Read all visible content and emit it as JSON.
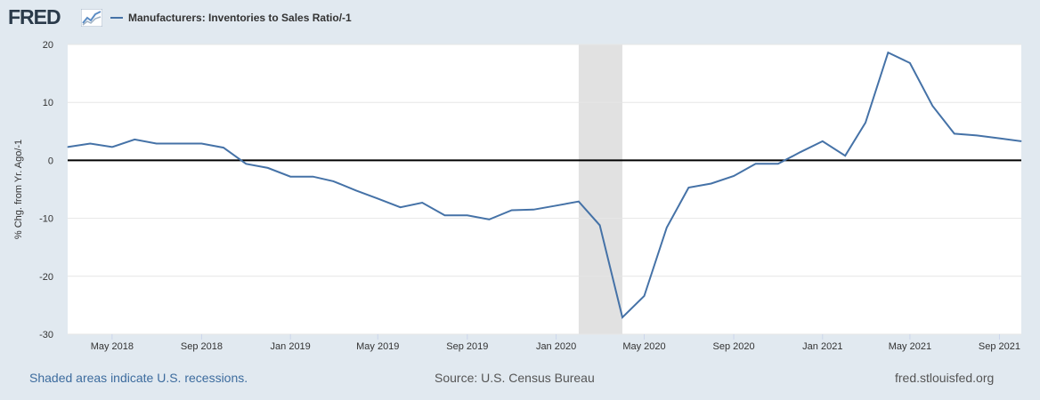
{
  "header": {
    "logo_text": "FRED",
    "logo_icon": "line-chart-icon",
    "legend_label": "Manufacturers: Inventories to Sales Ratio/-1"
  },
  "colors": {
    "series": "#4572a7",
    "recession": "#e1e1e1",
    "background": "#e1e9f0",
    "plot": "#ffffff"
  },
  "chart_data": {
    "type": "line",
    "ylabel": "% Chg. from Yr. Ago/-1",
    "ylim": [
      -30,
      20
    ],
    "y_ticks": [
      20,
      10,
      0,
      -10,
      -20,
      -30
    ],
    "x_ticks": [
      {
        "label": "May 2018",
        "date": "2018-05-01"
      },
      {
        "label": "Sep 2018",
        "date": "2018-09-01"
      },
      {
        "label": "Jan 2019",
        "date": "2019-01-01"
      },
      {
        "label": "May 2019",
        "date": "2019-05-01"
      },
      {
        "label": "Sep 2019",
        "date": "2019-09-01"
      },
      {
        "label": "Jan 2020",
        "date": "2020-01-01"
      },
      {
        "label": "May 2020",
        "date": "2020-05-01"
      },
      {
        "label": "Sep 2020",
        "date": "2020-09-01"
      },
      {
        "label": "Jan 2021",
        "date": "2021-01-01"
      },
      {
        "label": "May 2021",
        "date": "2021-05-01"
      },
      {
        "label": "Sep 2021",
        "date": "2021-09-01"
      }
    ],
    "recession": {
      "start": "2020-02-01",
      "end": "2020-04-01"
    },
    "series": [
      {
        "x": [
          "2018-03-01",
          "2018-04-01",
          "2018-05-01",
          "2018-06-01",
          "2018-07-01",
          "2018-08-01",
          "2018-09-01",
          "2018-10-01",
          "2018-11-01",
          "2018-12-01",
          "2019-01-01",
          "2019-02-01",
          "2019-03-01",
          "2019-04-01",
          "2019-05-01",
          "2019-06-01",
          "2019-07-01",
          "2019-08-01",
          "2019-09-01",
          "2019-10-01",
          "2019-11-01",
          "2019-12-01",
          "2020-01-01",
          "2020-02-01",
          "2020-03-01",
          "2020-04-01",
          "2020-05-01",
          "2020-06-01",
          "2020-07-01",
          "2020-08-01",
          "2020-09-01",
          "2020-10-01",
          "2020-11-01",
          "2020-12-01",
          "2021-01-01",
          "2021-02-01",
          "2021-03-01",
          "2021-04-01",
          "2021-05-01",
          "2021-06-01",
          "2021-07-01",
          "2021-08-01",
          "2021-09-01",
          "2021-10-01"
        ],
        "values": [
          2.3,
          2.9,
          2.3,
          3.6,
          2.9,
          2.9,
          2.9,
          2.2,
          -0.6,
          -1.3,
          -2.8,
          -2.8,
          -3.6,
          -5.2,
          -6.6,
          -8.1,
          -7.3,
          -9.5,
          -9.5,
          -10.2,
          -8.6,
          -8.5,
          -7.8,
          -7.1,
          -11.2,
          -27.1,
          -23.4,
          -11.6,
          -4.7,
          -4.0,
          -2.7,
          -0.6,
          -0.6,
          1.4,
          3.3,
          0.8,
          6.5,
          18.6,
          16.8,
          9.4,
          4.6,
          4.3,
          3.8,
          3.3
        ]
      }
    ]
  },
  "footer": {
    "recession_note": "Shaded areas indicate U.S. recessions.",
    "source": "Source: U.S. Census Bureau",
    "site": "fred.stlouisfed.org"
  }
}
